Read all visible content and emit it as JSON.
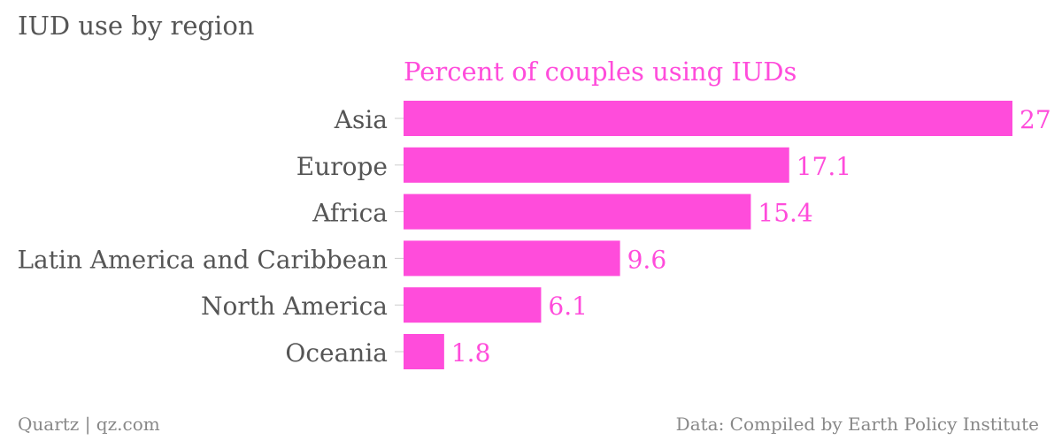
{
  "title": "IUD use by region",
  "footer": {
    "source_left": "Quartz | qz.com",
    "source_right": "Data: Compiled by Earth Policy Institute"
  },
  "colors": {
    "bar": "#ff4cdb",
    "label_text": "#ff4cdb",
    "category_text": "#555555",
    "tick": "#cccccc"
  },
  "chart_data": {
    "type": "bar",
    "orientation": "horizontal",
    "title": "IUD use by region",
    "series": [
      {
        "name": "Percent of couples using IUDs",
        "values": [
          27,
          17.1,
          15.4,
          9.6,
          6.1,
          1.8
        ]
      }
    ],
    "categories": [
      "Asia",
      "Europe",
      "Africa",
      "Latin America and Caribbean",
      "North America",
      "Oceania"
    ],
    "value_labels": [
      "27",
      "17.1",
      "15.4",
      "9.6",
      "6.1",
      "1.8"
    ],
    "xlim": [
      0,
      27
    ],
    "grid": false,
    "legend": "top"
  }
}
